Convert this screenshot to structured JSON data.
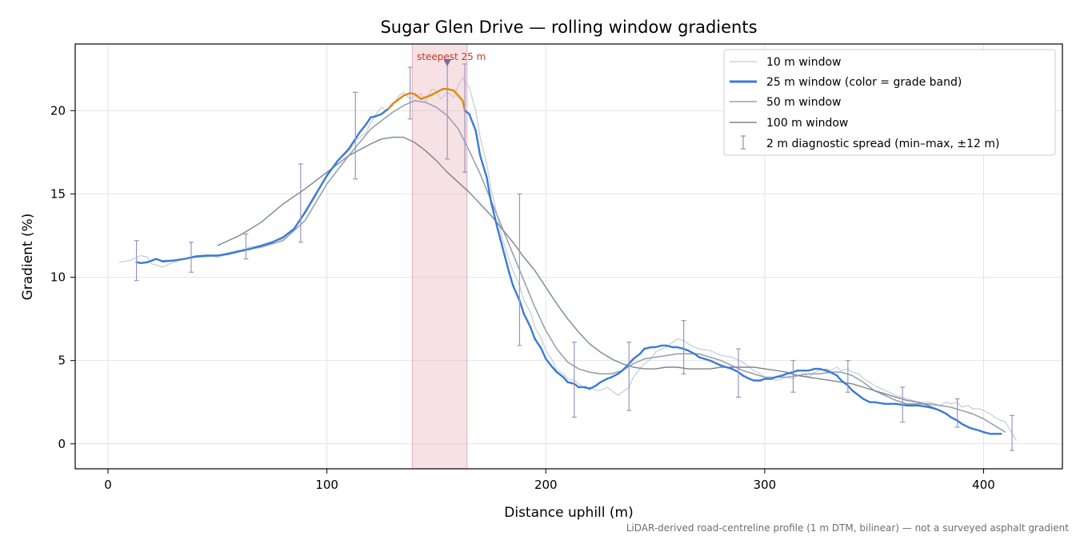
{
  "chart_data": {
    "type": "line",
    "title": "Sugar Glen Drive — rolling window gradients",
    "xlabel": "Distance uphill (m)",
    "ylabel": "Gradient (%)",
    "xlim": [
      -15,
      436
    ],
    "ylim": [
      -1.5,
      24
    ],
    "xticks": [
      0,
      100,
      200,
      300,
      400
    ],
    "yticks": [
      0,
      5,
      10,
      15,
      20
    ],
    "grid": true,
    "legend_position": "top-right",
    "highlight": {
      "x0": 139,
      "x1": 164,
      "label": "steepest 25 m",
      "marker_x": 155,
      "marker_y": 22.9
    },
    "footnote": "LiDAR-derived road-centreline profile (1 m DTM, bilinear) — not a surveyed asphalt gradient",
    "series": [
      {
        "name": "10 m window",
        "color": "#c5cbd6",
        "width": 1.2,
        "x": [
          5,
          10,
          15,
          18,
          20,
          23,
          25,
          28,
          30,
          35,
          40,
          45,
          50,
          55,
          60,
          65,
          70,
          75,
          80,
          85,
          90,
          95,
          100,
          105,
          110,
          113,
          118,
          120,
          123,
          125,
          127,
          130,
          133,
          135,
          138,
          140,
          143,
          145,
          148,
          150,
          152,
          155,
          158,
          160,
          162,
          163,
          165,
          168,
          170,
          173,
          175,
          178,
          180,
          183,
          185,
          188,
          190,
          193,
          195,
          198,
          200,
          203,
          205,
          208,
          210,
          213,
          215,
          218,
          220,
          223,
          225,
          228,
          230,
          233,
          235,
          238,
          240,
          243,
          245,
          248,
          250,
          253,
          255,
          258,
          260,
          263,
          265,
          268,
          270,
          275,
          280,
          285,
          288,
          290,
          293,
          295,
          298,
          300,
          303,
          305,
          308,
          310,
          313,
          315,
          318,
          320,
          323,
          325,
          328,
          330,
          333,
          335,
          338,
          340,
          343,
          345,
          348,
          350,
          355,
          360,
          365,
          370,
          375,
          378,
          380,
          383,
          385,
          388,
          390,
          393,
          395,
          398,
          400,
          403,
          405,
          408,
          410,
          415
        ],
        "y": [
          10.9,
          11.0,
          11.3,
          11.2,
          10.8,
          10.7,
          10.6,
          10.8,
          10.9,
          11.1,
          11.2,
          11.3,
          11.2,
          11.4,
          11.6,
          11.8,
          11.9,
          12.1,
          12.3,
          12.9,
          13.8,
          14.9,
          16.2,
          17.0,
          17.6,
          18.2,
          18.7,
          19.3,
          19.9,
          20.2,
          20.0,
          20.3,
          20.9,
          21.1,
          20.7,
          20.9,
          21.0,
          20.5,
          21.3,
          21.2,
          20.7,
          21.1,
          20.8,
          21.5,
          22.0,
          21.7,
          21.4,
          20.0,
          18.4,
          16.8,
          15.3,
          13.6,
          12.4,
          11.1,
          10.4,
          9.5,
          8.6,
          7.9,
          7.0,
          6.3,
          5.6,
          5.0,
          4.4,
          4.2,
          3.9,
          3.8,
          3.6,
          3.3,
          3.4,
          3.2,
          3.2,
          3.4,
          3.2,
          2.9,
          3.1,
          3.4,
          4.0,
          4.5,
          4.8,
          5.1,
          5.5,
          5.7,
          5.8,
          6.1,
          6.3,
          6.2,
          6.0,
          5.8,
          5.7,
          5.6,
          5.3,
          5.2,
          5.0,
          4.9,
          4.6,
          4.4,
          4.2,
          4.0,
          3.9,
          3.8,
          3.9,
          4.0,
          3.9,
          4.1,
          4.2,
          4.0,
          4.3,
          4.4,
          4.5,
          4.4,
          4.6,
          4.4,
          4.5,
          4.3,
          4.2,
          3.9,
          3.7,
          3.5,
          3.2,
          2.9,
          2.7,
          2.5,
          2.5,
          2.4,
          2.3,
          2.5,
          2.4,
          2.5,
          2.2,
          2.3,
          2.1,
          2.1,
          2.0,
          1.8,
          1.6,
          1.4,
          1.3,
          0.2
        ]
      },
      {
        "name": "25 m window (color = grade band)",
        "color": "#3a7bd5",
        "color_steep": "#e08a0b",
        "steep_above": 20,
        "width": 2.4,
        "x": [
          13,
          15,
          18,
          20,
          22,
          25,
          30,
          35,
          40,
          45,
          50,
          55,
          60,
          65,
          70,
          75,
          80,
          85,
          90,
          95,
          100,
          105,
          110,
          115,
          118,
          120,
          122,
          125,
          128,
          130,
          133,
          135,
          138,
          140,
          143,
          145,
          148,
          150,
          153,
          155,
          158,
          160,
          162,
          163,
          165,
          168,
          170,
          173,
          175,
          178,
          180,
          183,
          185,
          188,
          190,
          193,
          195,
          198,
          200,
          203,
          205,
          208,
          210,
          213,
          215,
          218,
          220,
          223,
          225,
          228,
          230,
          233,
          235,
          238,
          240,
          243,
          245,
          248,
          250,
          253,
          255,
          258,
          260,
          263,
          265,
          268,
          270,
          275,
          280,
          285,
          288,
          290,
          293,
          295,
          298,
          300,
          303,
          305,
          308,
          310,
          313,
          315,
          318,
          320,
          323,
          325,
          328,
          330,
          333,
          335,
          338,
          340,
          343,
          345,
          348,
          350,
          355,
          360,
          365,
          370,
          375,
          378,
          380,
          383,
          385,
          388,
          390,
          393,
          395,
          398,
          400,
          403,
          405,
          408
        ],
        "y": [
          10.9,
          10.85,
          10.9,
          11.0,
          11.1,
          10.95,
          11.0,
          11.1,
          11.25,
          11.3,
          11.3,
          11.4,
          11.55,
          11.7,
          11.9,
          12.1,
          12.4,
          12.9,
          13.9,
          15.0,
          16.1,
          17.0,
          17.7,
          18.7,
          19.2,
          19.6,
          19.65,
          19.8,
          20.1,
          20.4,
          20.7,
          20.9,
          21.05,
          21.0,
          20.7,
          20.8,
          20.95,
          21.1,
          21.3,
          21.3,
          21.2,
          20.9,
          20.6,
          20.0,
          19.8,
          18.8,
          17.3,
          16.0,
          14.5,
          12.9,
          11.9,
          10.4,
          9.5,
          8.6,
          7.8,
          7.0,
          6.3,
          5.7,
          5.1,
          4.6,
          4.3,
          4.0,
          3.7,
          3.6,
          3.4,
          3.4,
          3.3,
          3.5,
          3.7,
          3.9,
          4.0,
          4.2,
          4.4,
          4.8,
          5.1,
          5.4,
          5.7,
          5.8,
          5.8,
          5.9,
          5.9,
          5.8,
          5.8,
          5.7,
          5.6,
          5.4,
          5.2,
          5.0,
          4.7,
          4.5,
          4.3,
          4.1,
          3.9,
          3.8,
          3.8,
          3.9,
          3.9,
          4.0,
          4.1,
          4.2,
          4.3,
          4.4,
          4.4,
          4.4,
          4.5,
          4.5,
          4.4,
          4.3,
          4.1,
          3.8,
          3.5,
          3.2,
          2.9,
          2.7,
          2.5,
          2.5,
          2.4,
          2.4,
          2.3,
          2.3,
          2.2,
          2.1,
          2.0,
          1.8,
          1.6,
          1.4,
          1.2,
          1.0,
          0.9,
          0.8,
          0.7,
          0.6,
          0.6,
          0.6
        ]
      },
      {
        "name": "50 m window",
        "color": "#98a1b2",
        "width": 1.6,
        "x": [
          25,
          30,
          40,
          50,
          60,
          70,
          80,
          90,
          100,
          110,
          120,
          125,
          130,
          135,
          140,
          145,
          150,
          155,
          160,
          165,
          170,
          175,
          180,
          185,
          190,
          195,
          200,
          205,
          210,
          215,
          220,
          225,
          230,
          235,
          240,
          245,
          250,
          255,
          260,
          265,
          270,
          275,
          280,
          285,
          290,
          295,
          300,
          305,
          310,
          315,
          320,
          325,
          330,
          335,
          340,
          345,
          350,
          355,
          360,
          365,
          370,
          375,
          380,
          385,
          390,
          395,
          400,
          405,
          410
        ],
        "y": [
          11.0,
          11.0,
          11.2,
          11.3,
          11.6,
          11.8,
          12.2,
          13.4,
          15.6,
          17.3,
          18.9,
          19.4,
          19.9,
          20.3,
          20.6,
          20.5,
          20.2,
          19.7,
          18.9,
          17.6,
          16.2,
          14.6,
          13.0,
          11.4,
          9.8,
          8.2,
          6.8,
          5.7,
          4.9,
          4.5,
          4.3,
          4.2,
          4.2,
          4.4,
          4.8,
          5.1,
          5.2,
          5.3,
          5.4,
          5.4,
          5.4,
          5.2,
          5.0,
          4.7,
          4.4,
          4.2,
          4.0,
          4.0,
          4.0,
          4.1,
          4.2,
          4.2,
          4.3,
          4.3,
          4.1,
          3.7,
          3.2,
          2.9,
          2.6,
          2.4,
          2.4,
          2.4,
          2.3,
          2.2,
          2.0,
          1.8,
          1.5,
          1.1,
          0.7
        ]
      },
      {
        "name": "100 m window",
        "color": "#7d8594",
        "width": 1.4,
        "x": [
          50,
          60,
          70,
          80,
          90,
          100,
          110,
          120,
          125,
          130,
          135,
          140,
          145,
          150,
          155,
          160,
          165,
          170,
          175,
          180,
          185,
          190,
          195,
          200,
          205,
          210,
          215,
          220,
          225,
          230,
          235,
          240,
          245,
          250,
          255,
          260,
          265,
          270,
          275,
          280,
          285,
          290,
          295,
          300,
          305,
          310,
          315,
          320,
          325,
          330,
          335,
          340,
          345,
          350,
          355,
          360,
          365,
          370,
          375,
          380
        ],
        "y": [
          11.9,
          12.5,
          13.3,
          14.4,
          15.3,
          16.3,
          17.3,
          18.0,
          18.3,
          18.4,
          18.4,
          18.1,
          17.6,
          17.0,
          16.3,
          15.7,
          15.1,
          14.4,
          13.7,
          12.9,
          12.1,
          11.2,
          10.4,
          9.4,
          8.4,
          7.5,
          6.7,
          6.0,
          5.5,
          5.1,
          4.8,
          4.6,
          4.5,
          4.5,
          4.6,
          4.6,
          4.5,
          4.5,
          4.5,
          4.6,
          4.6,
          4.6,
          4.6,
          4.5,
          4.4,
          4.3,
          4.1,
          4.0,
          3.9,
          3.8,
          3.7,
          3.6,
          3.4,
          3.2,
          3.0,
          2.8,
          2.6,
          2.5,
          2.3,
          2.0
        ]
      }
    ],
    "diagnostic": {
      "name": "2 m diagnostic spread (min–max, ±12 m)",
      "color": "#9b94c2",
      "points": [
        {
          "x": 13,
          "min": 9.8,
          "max": 12.2
        },
        {
          "x": 38,
          "min": 10.3,
          "max": 12.1
        },
        {
          "x": 63,
          "min": 11.1,
          "max": 12.6
        },
        {
          "x": 88,
          "min": 12.1,
          "max": 16.8
        },
        {
          "x": 113,
          "min": 15.9,
          "max": 21.1
        },
        {
          "x": 138,
          "min": 19.5,
          "max": 22.6
        },
        {
          "x": 155,
          "min": 17.1,
          "max": 22.9
        },
        {
          "x": 163,
          "min": 16.3,
          "max": 22.8
        },
        {
          "x": 188,
          "min": 5.9,
          "max": 15.0
        },
        {
          "x": 213,
          "min": 1.6,
          "max": 6.1
        },
        {
          "x": 238,
          "min": 2.0,
          "max": 6.1
        },
        {
          "x": 263,
          "min": 4.2,
          "max": 7.4
        },
        {
          "x": 288,
          "min": 2.8,
          "max": 5.7
        },
        {
          "x": 313,
          "min": 3.1,
          "max": 5.0
        },
        {
          "x": 338,
          "min": 3.1,
          "max": 5.0
        },
        {
          "x": 363,
          "min": 1.3,
          "max": 3.4
        },
        {
          "x": 388,
          "min": 1.0,
          "max": 2.7
        },
        {
          "x": 413,
          "min": -0.4,
          "max": 1.7
        }
      ]
    }
  }
}
